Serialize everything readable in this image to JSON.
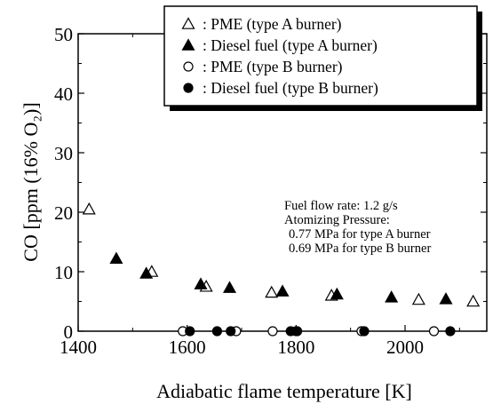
{
  "chart_data": {
    "type": "scatter",
    "xlabel": "Adiabatic flame temperature [K]",
    "ylabel": "CO [ppm (16% O₂)]",
    "xlim": [
      1400,
      2150
    ],
    "ylim": [
      0,
      50
    ],
    "xticks": [
      "1400",
      "1600",
      "1800",
      "2000"
    ],
    "xtick_values": [
      1400,
      1600,
      1800,
      2000
    ],
    "yticks": [
      "0",
      "10",
      "20",
      "30",
      "40",
      "50"
    ],
    "ytick_values": [
      0,
      10,
      20,
      30,
      40,
      50
    ],
    "grid": false,
    "legend_position": "top-right",
    "series": [
      {
        "name": ": PME (type A burner)",
        "marker": "triangle-open",
        "points": [
          [
            1420,
            20.5
          ],
          [
            1535,
            10
          ],
          [
            1635,
            7.5
          ],
          [
            1755,
            6.5
          ],
          [
            1865,
            6
          ],
          [
            2025,
            5.3
          ],
          [
            2125,
            5
          ]
        ]
      },
      {
        "name": ": Diesel fuel (type A burner)",
        "marker": "triangle-filled",
        "points": [
          [
            1470,
            12.2
          ],
          [
            1525,
            9.7
          ],
          [
            1625,
            7.9
          ],
          [
            1678,
            7.3
          ],
          [
            1775,
            6.7
          ],
          [
            1875,
            6.2
          ],
          [
            1975,
            5.7
          ],
          [
            2075,
            5.4
          ]
        ]
      },
      {
        "name": ": PME (type B burner)",
        "marker": "circle-open",
        "points": [
          [
            1592,
            0.3
          ],
          [
            1690,
            0.3
          ],
          [
            1757,
            0.3
          ],
          [
            1802,
            0.3
          ],
          [
            1920,
            0.3
          ],
          [
            2053,
            0.3
          ]
        ]
      },
      {
        "name": ": Diesel fuel (type B burner)",
        "marker": "circle-filled",
        "points": [
          [
            1605,
            0.3
          ],
          [
            1655,
            0.3
          ],
          [
            1680,
            0.3
          ],
          [
            1790,
            0.3
          ],
          [
            1800,
            0.3
          ],
          [
            1925,
            0.3
          ],
          [
            2083,
            0.3
          ]
        ]
      }
    ],
    "annotations": [
      "Fuel flow rate: 1.2 g/s",
      "Atomizing Pressure:",
      "0.77 MPa for type A burner",
      "0.69 MPa for type B burner"
    ]
  }
}
